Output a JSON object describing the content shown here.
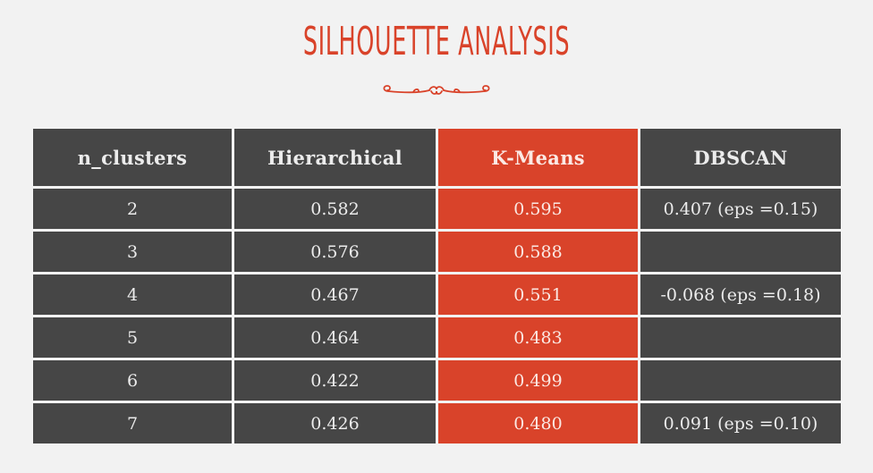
{
  "title": "Silhouette Analysis",
  "colors": {
    "background": "#f2f2f2",
    "accent": "#d9432a",
    "cell": "#464646",
    "cell_text": "#ececec"
  },
  "icons": {
    "ornament": "scroll-divider-icon"
  },
  "table": {
    "headers": [
      "n_clusters",
      "Hierarchical",
      "K-Means",
      "DBSCAN"
    ],
    "highlight_column": 2,
    "rows": [
      [
        "2",
        "0.582",
        "0.595",
        "0.407 (eps =0.15)"
      ],
      [
        "3",
        "0.576",
        "0.588",
        ""
      ],
      [
        "4",
        "0.467",
        "0.551",
        "-0.068 (eps =0.18)"
      ],
      [
        "5",
        "0.464",
        "0.483",
        ""
      ],
      [
        "6",
        "0.422",
        "0.499",
        ""
      ],
      [
        "7",
        "0.426",
        "0.480",
        "0.091 (eps =0.10)"
      ]
    ]
  }
}
